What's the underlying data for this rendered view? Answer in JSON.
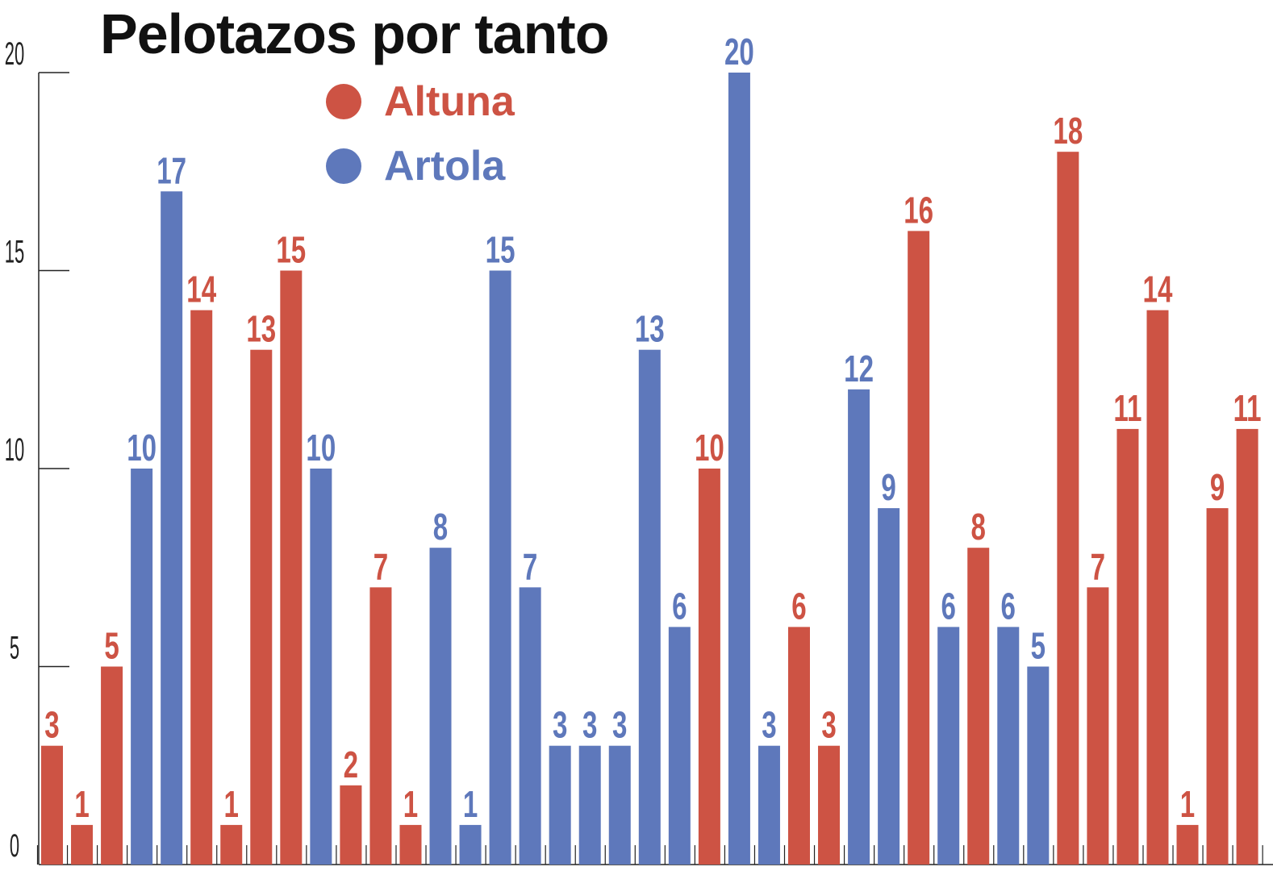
{
  "chart_data": {
    "type": "bar",
    "title": "Pelotazos por tanto",
    "xlabel": "",
    "ylabel": "",
    "ylim": [
      0,
      20
    ],
    "yticks": [
      "0",
      "5",
      "10",
      "15",
      "20"
    ],
    "grid": false,
    "legend_position": "top-left",
    "series": [
      {
        "name": "Altuna",
        "color": "#cd5344"
      },
      {
        "name": "Artola",
        "color": "#5e78bb"
      }
    ],
    "bars": [
      {
        "value": 3,
        "series": "Altuna"
      },
      {
        "value": 1,
        "series": "Altuna"
      },
      {
        "value": 5,
        "series": "Altuna"
      },
      {
        "value": 10,
        "series": "Artola"
      },
      {
        "value": 17,
        "series": "Artola"
      },
      {
        "value": 14,
        "series": "Altuna"
      },
      {
        "value": 1,
        "series": "Altuna"
      },
      {
        "value": 13,
        "series": "Altuna"
      },
      {
        "value": 15,
        "series": "Altuna"
      },
      {
        "value": 10,
        "series": "Artola"
      },
      {
        "value": 2,
        "series": "Altuna"
      },
      {
        "value": 7,
        "series": "Altuna"
      },
      {
        "value": 1,
        "series": "Altuna"
      },
      {
        "value": 8,
        "series": "Artola"
      },
      {
        "value": 1,
        "series": "Artola"
      },
      {
        "value": 15,
        "series": "Artola"
      },
      {
        "value": 7,
        "series": "Artola"
      },
      {
        "value": 3,
        "series": "Artola"
      },
      {
        "value": 3,
        "series": "Artola"
      },
      {
        "value": 3,
        "series": "Artola"
      },
      {
        "value": 13,
        "series": "Artola"
      },
      {
        "value": 6,
        "series": "Artola"
      },
      {
        "value": 10,
        "series": "Altuna"
      },
      {
        "value": 20,
        "series": "Artola"
      },
      {
        "value": 3,
        "series": "Artola"
      },
      {
        "value": 6,
        "series": "Altuna"
      },
      {
        "value": 3,
        "series": "Altuna"
      },
      {
        "value": 12,
        "series": "Artola"
      },
      {
        "value": 9,
        "series": "Artola"
      },
      {
        "value": 16,
        "series": "Altuna"
      },
      {
        "value": 6,
        "series": "Artola"
      },
      {
        "value": 8,
        "series": "Altuna"
      },
      {
        "value": 6,
        "series": "Artola"
      },
      {
        "value": 5,
        "series": "Artola"
      },
      {
        "value": 18,
        "series": "Altuna"
      },
      {
        "value": 7,
        "series": "Altuna"
      },
      {
        "value": 11,
        "series": "Altuna"
      },
      {
        "value": 14,
        "series": "Altuna"
      },
      {
        "value": 1,
        "series": "Altuna"
      },
      {
        "value": 9,
        "series": "Altuna"
      },
      {
        "value": 11,
        "series": "Altuna"
      }
    ]
  }
}
